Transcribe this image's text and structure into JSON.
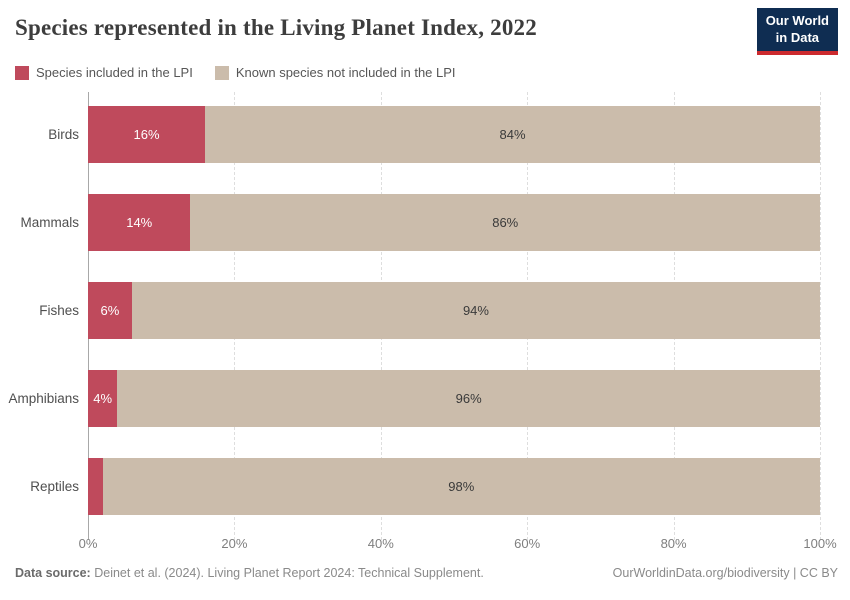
{
  "header": {
    "title": "Species represented in the Living Planet Index, 2022",
    "logo_line1": "Our World",
    "logo_line2": "in Data"
  },
  "legend": [
    {
      "label": "Species included in the LPI",
      "color": "#bf4a5c"
    },
    {
      "label": "Known species not included in the LPI",
      "color": "#cbbcab"
    }
  ],
  "chart_data": {
    "type": "bar",
    "orientation": "horizontal",
    "stacked": true,
    "title": "Species represented in the Living Planet Index, 2022",
    "categories": [
      "Birds",
      "Mammals",
      "Fishes",
      "Amphibians",
      "Reptiles"
    ],
    "series": [
      {
        "name": "Species included in the LPI",
        "color": "#bf4a5c",
        "values": [
          16,
          14,
          6,
          4,
          2
        ]
      },
      {
        "name": "Known species not included in the LPI",
        "color": "#cbbcab",
        "values": [
          84,
          86,
          94,
          96,
          98
        ]
      }
    ],
    "bar_labels": {
      "included": [
        "16%",
        "14%",
        "6%",
        "4%",
        ""
      ],
      "not_included": [
        "84%",
        "86%",
        "94%",
        "96%",
        "98%"
      ]
    },
    "x_tick_values": [
      0,
      20,
      40,
      60,
      80,
      100
    ],
    "x_ticks": [
      "0%",
      "20%",
      "40%",
      "60%",
      "80%",
      "100%"
    ],
    "xlim": [
      0,
      100
    ],
    "grid": "vertical-dashed",
    "legend_position": "top"
  },
  "footer": {
    "datasource_label": "Data source:",
    "datasource_text": "Deinet et al. (2024). Living Planet Report 2024: Technical Supplement.",
    "attribution": "OurWorldinData.org/biodiversity | CC BY"
  },
  "colors": {
    "included": "#bf4a5c",
    "not_included": "#cbbcab",
    "logo_bg": "#0f2d52",
    "logo_stripe": "#cc2a2e",
    "gridline": "#dedede",
    "axis_line": "#a8a8a8"
  }
}
